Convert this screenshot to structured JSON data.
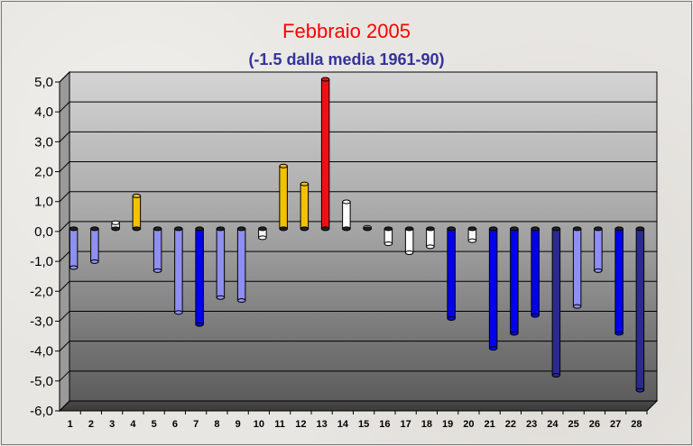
{
  "header": {
    "title": "Febbraio 2005",
    "subtitle": "(-1.5 dalla media 1961-90)"
  },
  "colors": {
    "red": "#ee1111",
    "gold": "#f2c200",
    "white": "#ffffff",
    "light_blue": "#8f8ff2",
    "blue": "#0000ee",
    "dark_blue": "#2b2b8e"
  },
  "chart_data": {
    "type": "bar",
    "title": "Febbraio 2005",
    "subtitle": "(-1.5 dalla media 1961-90)",
    "xlabel": "",
    "ylabel": "",
    "ylim": [
      -6,
      5
    ],
    "grid": true,
    "legend": "none",
    "yticks": [
      "5,0",
      "4,0",
      "3,0",
      "2,0",
      "1,0",
      "0,0",
      "-1,0",
      "-2,0",
      "-3,0",
      "-4,0",
      "-5,0",
      "-6,0"
    ],
    "categories": [
      "1",
      "2",
      "3",
      "4",
      "5",
      "6",
      "7",
      "8",
      "9",
      "10",
      "11",
      "12",
      "13",
      "14",
      "15",
      "16",
      "17",
      "18",
      "19",
      "20",
      "21",
      "22",
      "23",
      "24",
      "25",
      "26",
      "27",
      "28"
    ],
    "values": [
      -1.3,
      -1.1,
      0.2,
      1.1,
      -1.4,
      -2.8,
      -3.2,
      -2.3,
      -2.4,
      -0.3,
      2.1,
      1.5,
      5.0,
      0.9,
      0.05,
      -0.5,
      -0.8,
      -0.6,
      -3.0,
      -0.4,
      -4.0,
      -3.5,
      -2.9,
      -4.9,
      -2.6,
      -1.4,
      -3.5,
      -5.4
    ],
    "bar_colors": [
      "light_blue",
      "light_blue",
      "white",
      "gold",
      "light_blue",
      "light_blue",
      "blue",
      "light_blue",
      "light_blue",
      "white",
      "gold",
      "gold",
      "red",
      "white",
      "white",
      "white",
      "white",
      "white",
      "blue",
      "white",
      "blue",
      "blue",
      "blue",
      "dark_blue",
      "light_blue",
      "light_blue",
      "blue",
      "dark_blue"
    ]
  }
}
